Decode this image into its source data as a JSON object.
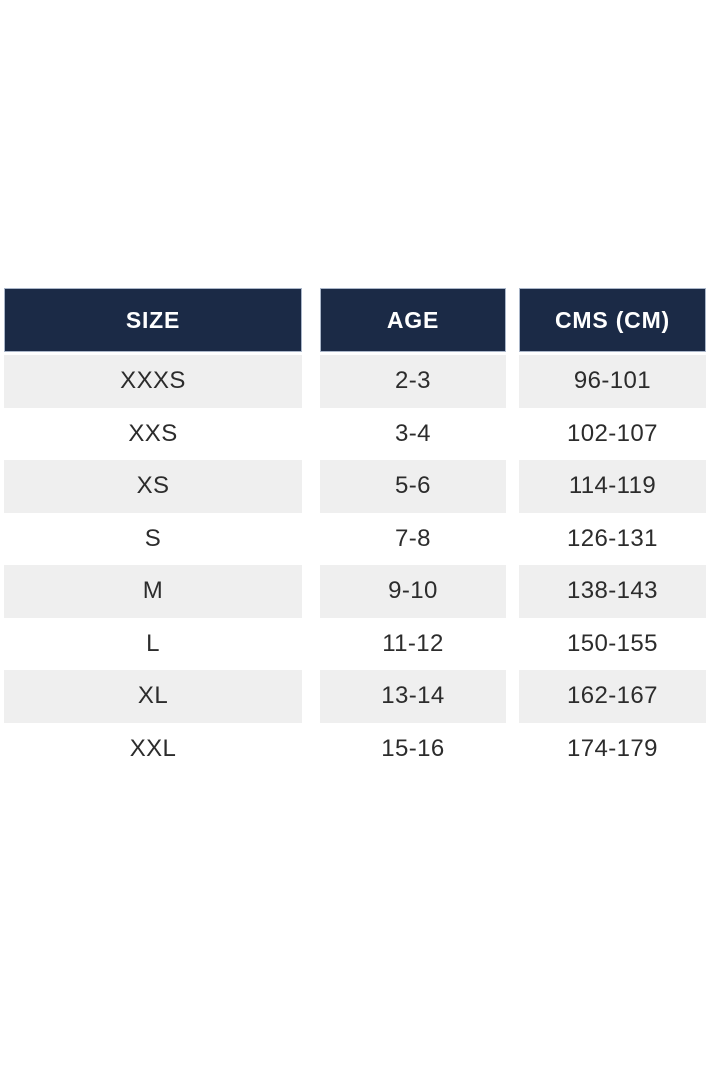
{
  "table": {
    "columns": [
      {
        "label": "SIZE"
      },
      {
        "label": "AGE"
      },
      {
        "label": "CMS (CM)"
      }
    ],
    "rows": [
      {
        "size": "XXXS",
        "age": "2-3",
        "cms": "96-101"
      },
      {
        "size": "XXS",
        "age": "3-4",
        "cms": "102-107"
      },
      {
        "size": "XS",
        "age": "5-6",
        "cms": "114-119"
      },
      {
        "size": "S",
        "age": "7-8",
        "cms": "126-131"
      },
      {
        "size": "M",
        "age": "9-10",
        "cms": "138-143"
      },
      {
        "size": "L",
        "age": "11-12",
        "cms": "150-155"
      },
      {
        "size": "XL",
        "age": "13-14",
        "cms": "162-167"
      },
      {
        "size": "XXL",
        "age": "15-16",
        "cms": "174-179"
      }
    ]
  },
  "colors": {
    "header_bg": "#1b2a46",
    "header_text": "#ffffff",
    "header_edge": "#aab6c9",
    "row_bg": "#ffffff",
    "row_alt_bg": "#efefef",
    "cell_text": "#2c2c2c"
  }
}
